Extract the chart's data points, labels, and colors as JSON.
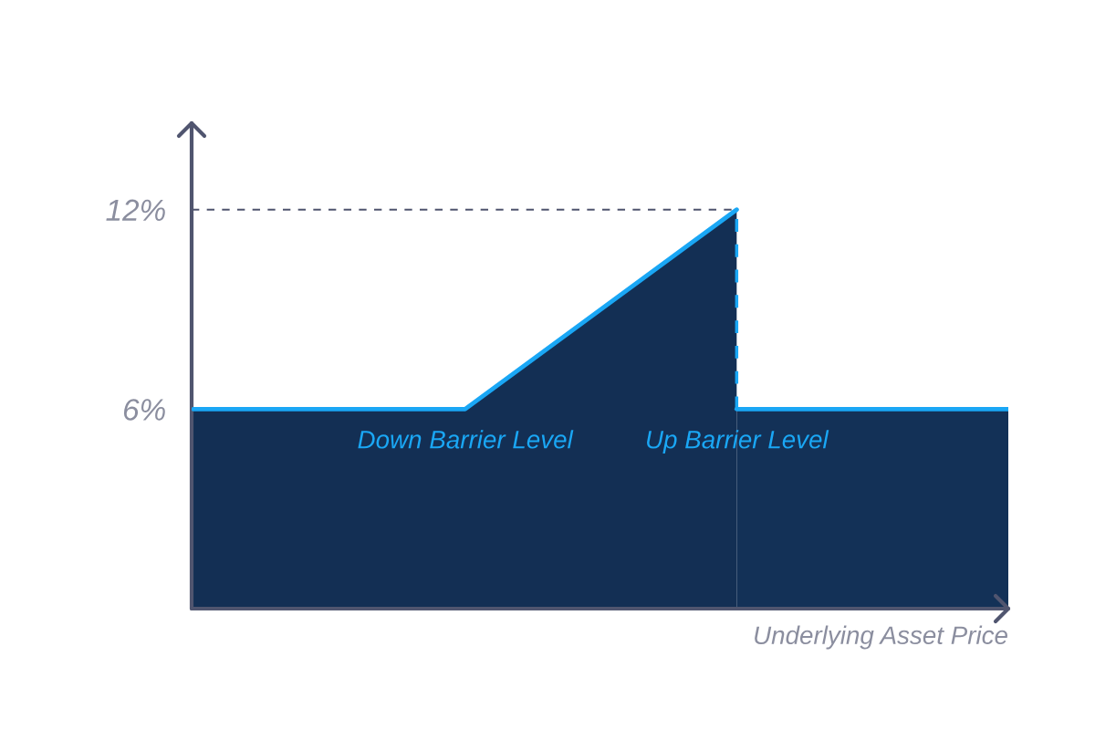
{
  "chart_data": {
    "type": "area",
    "categories": [
      null,
      "Down Barrier Level",
      "Up Barrier Level",
      null
    ],
    "series": [
      {
        "color": "#1aa7f5",
        "values": [
          6,
          6,
          12,
          null
        ]
      },
      {
        "color": "#1aa7f5",
        "values": [
          null,
          null,
          6,
          6
        ]
      }
    ],
    "xlabel": "Underlying Asset Price",
    "ylim": [
      0,
      14.6
    ],
    "yticks": [
      {
        "value": 6,
        "label": "6%"
      },
      {
        "value": 12,
        "label": "12%"
      }
    ],
    "ref_lines": [
      {
        "axis": "y",
        "value": 12,
        "color": "#4f546e",
        "line_style": "dashed"
      },
      {
        "axis": "x",
        "value": "Up Barrier Level",
        "color": "#1aa7f5",
        "line_style": "dashed"
      }
    ]
  }
}
